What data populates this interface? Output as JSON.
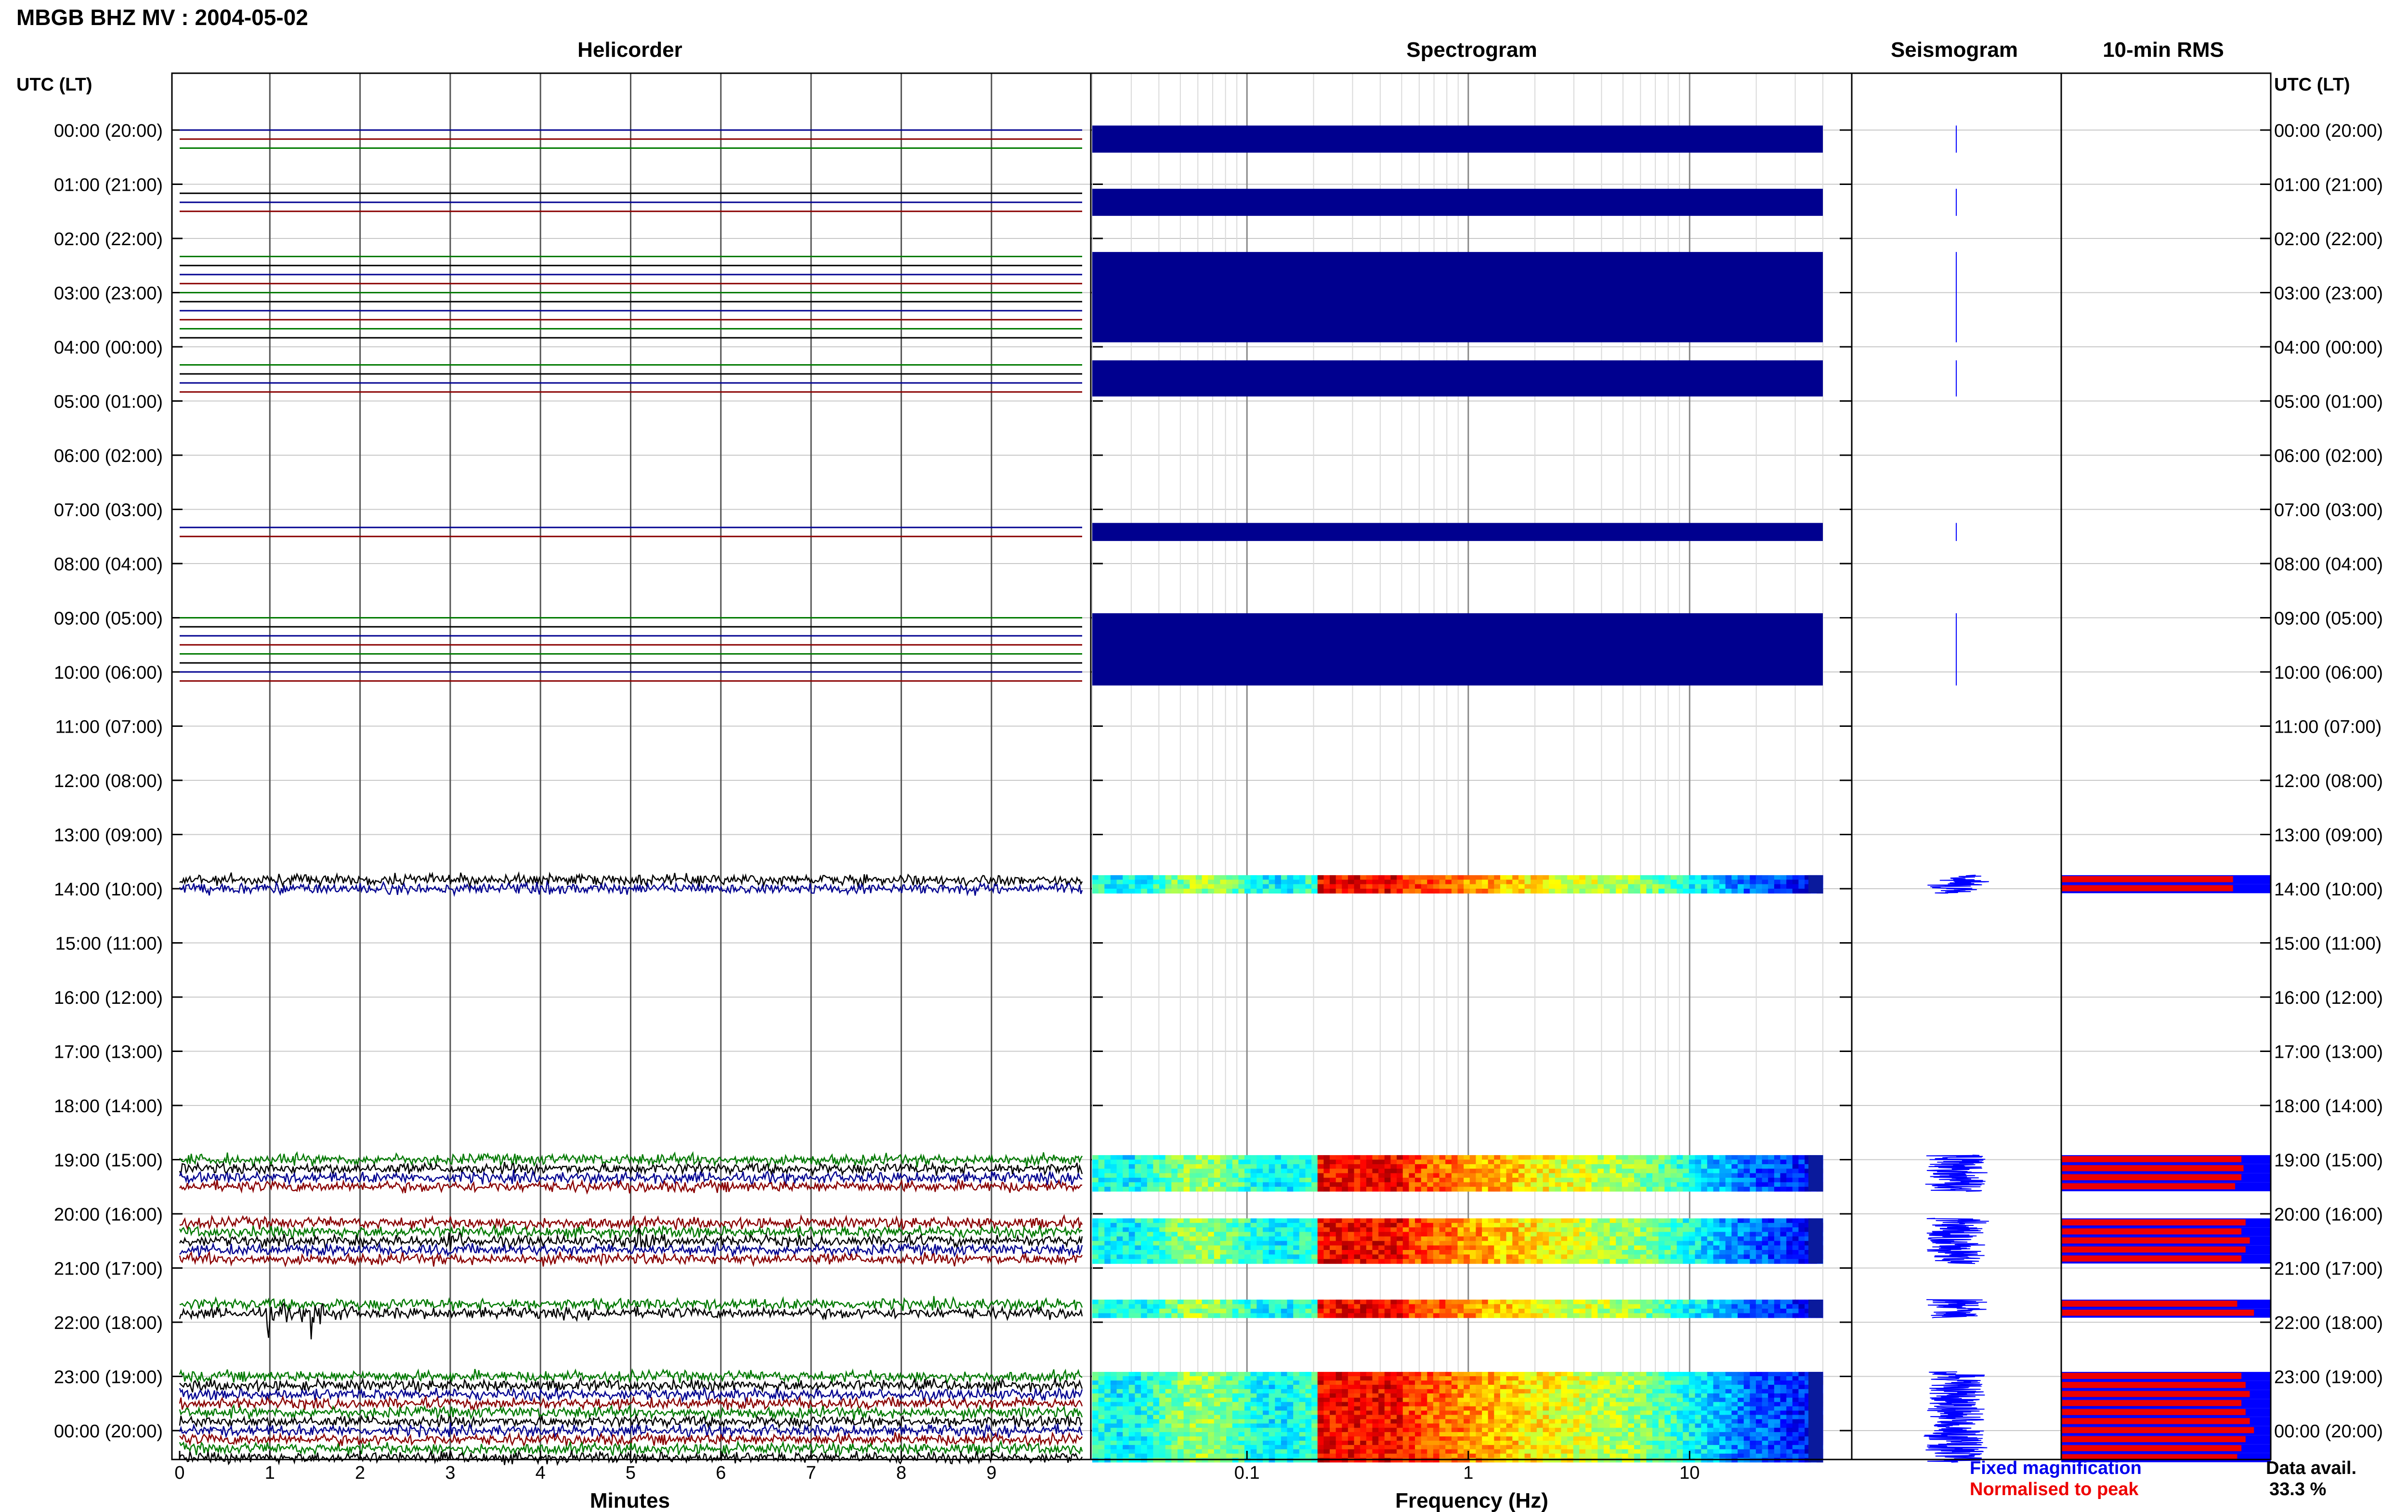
{
  "header": {
    "title": "MBGB BHZ MV : 2004-05-02"
  },
  "panels": {
    "helicorder": "Helicorder",
    "spectrogram": "Spectrogram",
    "seismogram": "Seismogram",
    "rms": "10-min RMS"
  },
  "axes": {
    "utc_header_left": "UTC (LT)",
    "utc_header_right": "UTC (LT)",
    "minutes_label": "Minutes",
    "frequency_label": "Frequency (Hz)"
  },
  "legend": {
    "fixed": "Fixed magnification",
    "normalised": "Normalised to peak",
    "fixed_color": "#0000ee",
    "normalised_color": "#ee0000"
  },
  "data_avail": {
    "label": "Data avail.",
    "value": "33.3 %"
  },
  "colors": {
    "trace_cycle": [
      "#000090",
      "#8a0000",
      "#007a00",
      "#000000"
    ],
    "spectrogram_empty": "#00008f",
    "seismogram": "#0000ff",
    "rms_fixed": "#0000ff",
    "rms_norm": "#ee0000"
  },
  "chart_data": {
    "type": "heatmap",
    "hour_labels": [
      "00:00 (20:00)",
      "01:00 (21:00)",
      "02:00 (22:00)",
      "03:00 (23:00)",
      "04:00 (00:00)",
      "05:00 (01:00)",
      "06:00 (02:00)",
      "07:00 (03:00)",
      "08:00 (04:00)",
      "09:00 (05:00)",
      "10:00 (06:00)",
      "11:00 (07:00)",
      "12:00 (08:00)",
      "13:00 (09:00)",
      "14:00 (10:00)",
      "15:00 (11:00)",
      "16:00 (12:00)",
      "17:00 (13:00)",
      "18:00 (14:00)",
      "19:00 (15:00)",
      "20:00 (16:00)",
      "21:00 (17:00)",
      "22:00 (18:00)",
      "23:00 (19:00)",
      "00:00 (20:00)"
    ],
    "minute_ticks": [
      "0",
      "1",
      "2",
      "3",
      "4",
      "5",
      "6",
      "7",
      "8",
      "9"
    ],
    "frequency_ticks": [
      {
        "value": 0.1,
        "label": "0.1"
      },
      {
        "value": 1,
        "label": "1"
      },
      {
        "value": 10,
        "label": "10"
      }
    ],
    "frequency_range_hz": [
      0.02,
      40
    ],
    "trace_duration_minutes": 10,
    "rows_per_hour": 6,
    "flat_rows": [
      0,
      1,
      2,
      7,
      8,
      9,
      14,
      15,
      16,
      17,
      18,
      19,
      20,
      21,
      22,
      23,
      26,
      27,
      28,
      29,
      44,
      45,
      54,
      55,
      56,
      57,
      58,
      59,
      60,
      61
    ],
    "seismic_rows": [
      83,
      84,
      114,
      115,
      116,
      117,
      121,
      122,
      123,
      124,
      125,
      130,
      131,
      138,
      139,
      140,
      141,
      142,
      143,
      144,
      145,
      146,
      147
    ],
    "events": [
      {
        "row": 131,
        "minute": 1.0,
        "amplitude": 2.2
      },
      {
        "row": 131,
        "minute": 1.5,
        "amplitude": 3.2
      },
      {
        "row": 123,
        "minute": 3.0,
        "amplitude": 1.4
      },
      {
        "row": 123,
        "minute": 5.1,
        "amplitude": 1.2
      }
    ],
    "rms_fixed": [
      {
        "row": 83,
        "value": 0.82
      },
      {
        "row": 84,
        "value": 0.82
      },
      {
        "row": 114,
        "value": 0.86
      },
      {
        "row": 115,
        "value": 0.87
      },
      {
        "row": 116,
        "value": 0.86
      },
      {
        "row": 117,
        "value": 0.83
      },
      {
        "row": 121,
        "value": 0.88
      },
      {
        "row": 122,
        "value": 0.86
      },
      {
        "row": 123,
        "value": 0.9
      },
      {
        "row": 124,
        "value": 0.88
      },
      {
        "row": 125,
        "value": 0.86
      },
      {
        "row": 130,
        "value": 0.84
      },
      {
        "row": 131,
        "value": 0.92
      },
      {
        "row": 138,
        "value": 0.86
      },
      {
        "row": 139,
        "value": 0.88
      },
      {
        "row": 140,
        "value": 0.9
      },
      {
        "row": 141,
        "value": 0.86
      },
      {
        "row": 142,
        "value": 0.88
      },
      {
        "row": 143,
        "value": 0.9
      },
      {
        "row": 144,
        "value": 0.92
      },
      {
        "row": 145,
        "value": 0.88
      },
      {
        "row": 146,
        "value": 0.86
      },
      {
        "row": 147,
        "value": 0.84
      }
    ]
  }
}
